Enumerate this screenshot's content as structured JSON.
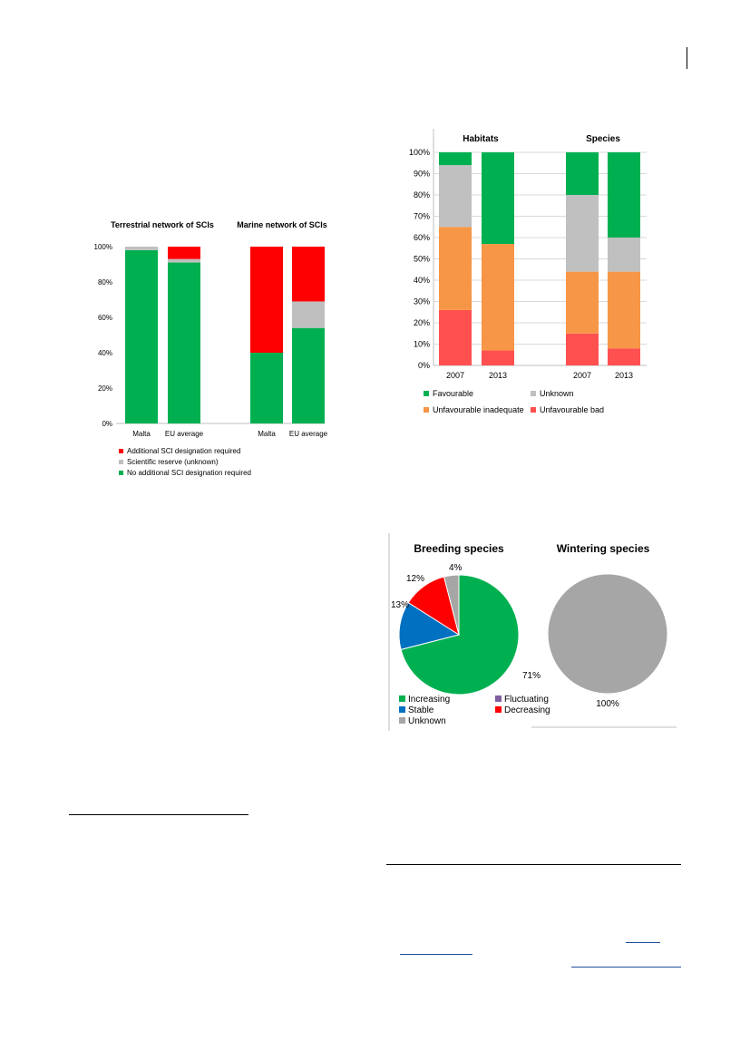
{
  "chart_data": [
    {
      "type": "bar",
      "stacked": true,
      "percent": true,
      "groups": [
        {
          "title": "Terrestrial network of SCIs",
          "categories": [
            "Malta",
            "EU average"
          ]
        },
        {
          "title": "Marine network of SCIs",
          "categories": [
            "Malta",
            "EU average"
          ]
        }
      ],
      "series": [
        {
          "name": "No additional SCI designation required",
          "color": "#00b050",
          "values": [
            98,
            91,
            40,
            54
          ]
        },
        {
          "name": "Scientific reserve (unknown)",
          "color": "#bfbfbf",
          "values": [
            2,
            2,
            0,
            15
          ]
        },
        {
          "name": "Additional SCI designation required",
          "color": "#ff0000",
          "values": [
            0,
            7,
            60,
            31
          ]
        }
      ],
      "yticks": [
        "0%",
        "20%",
        "40%",
        "60%",
        "80%",
        "100%"
      ],
      "ylim": [
        0,
        100
      ],
      "grid": false,
      "legend_position": "bottom"
    },
    {
      "type": "bar",
      "stacked": true,
      "percent": true,
      "groups": [
        {
          "title": "Habitats",
          "categories": [
            "2007",
            "2013"
          ]
        },
        {
          "title": "Species",
          "categories": [
            "2007",
            "2013"
          ]
        }
      ],
      "series": [
        {
          "name": "Unfavourable bad",
          "color": "#ff5050",
          "values": [
            26,
            7,
            15,
            8
          ]
        },
        {
          "name": "Unfavourable inadequate",
          "color": "#f79646",
          "values": [
            39,
            50,
            29,
            36
          ]
        },
        {
          "name": "Unknown",
          "color": "#c0c0c0",
          "values": [
            29,
            0,
            36,
            16
          ]
        },
        {
          "name": "Favourable",
          "color": "#00b050",
          "values": [
            6,
            43,
            20,
            40
          ]
        }
      ],
      "yticks": [
        "0%",
        "10%",
        "20%",
        "30%",
        "40%",
        "50%",
        "60%",
        "70%",
        "80%",
        "90%",
        "100%"
      ],
      "ylim": [
        0,
        100
      ],
      "grid": true,
      "legend_position": "bottom"
    },
    {
      "type": "pie",
      "pies": [
        {
          "title": "Breeding species",
          "slices": [
            {
              "name": "Increasing",
              "value": 71,
              "label": "71%",
              "color": "#00b050"
            },
            {
              "name": "Stable",
              "value": 13,
              "label": "13%",
              "color": "#0070c0"
            },
            {
              "name": "Decreasing",
              "value": 12,
              "label": "12%",
              "color": "#ff0000"
            },
            {
              "name": "Unknown",
              "value": 4,
              "label": "4%",
              "color": "#a6a6a6"
            }
          ]
        },
        {
          "title": "Wintering species",
          "slices": [
            {
              "name": "Unknown",
              "value": 100,
              "label": "100%",
              "color": "#a6a6a6"
            }
          ]
        }
      ],
      "legend": [
        {
          "name": "Increasing",
          "color": "#00b050"
        },
        {
          "name": "Fluctuating",
          "color": "#7f5fa0"
        },
        {
          "name": "Stable",
          "color": "#0070c0"
        },
        {
          "name": "Decreasing",
          "color": "#ff0000"
        },
        {
          "name": "Unknown",
          "color": "#a6a6a6"
        }
      ],
      "legend_position": "bottom"
    }
  ]
}
